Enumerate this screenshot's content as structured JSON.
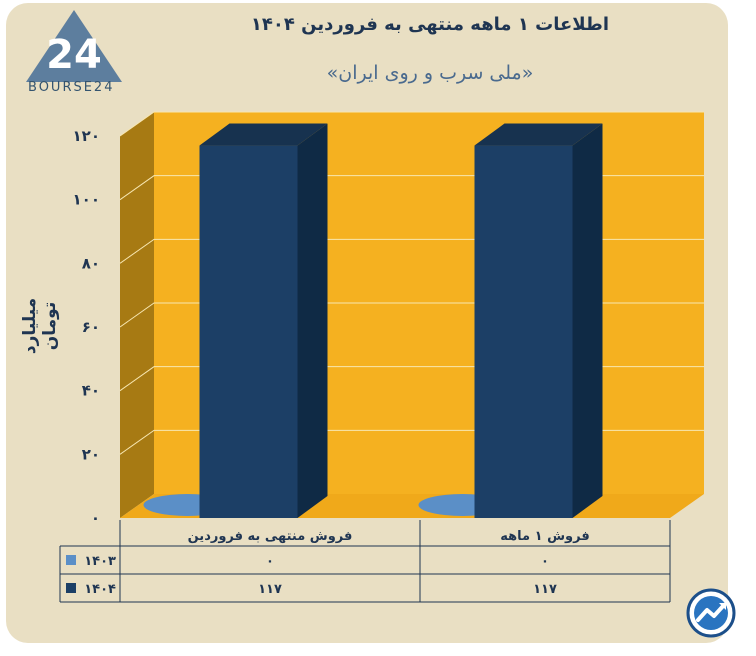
{
  "header": {
    "title": "اطلاعات ۱ ماهه منتهی به فروردین ۱۴۰۴",
    "subtitle": "«ملی سرب و روی ایران»",
    "logo_text": "BOURSE24"
  },
  "colors": {
    "background": "#e9dfc3",
    "plot_back": "#f5b120",
    "plot_side": "#a77a13",
    "plot_floor": "#f0a91a",
    "series_1403": "#5b8fc7",
    "series_1404": "#1c3f66",
    "series_1404_side": "#0f2a45",
    "series_1404_top": "#17324f"
  },
  "chart_data": {
    "type": "bar",
    "categories": [
      "فروش ۱ ماهه",
      "فروش منتهی به فروردین"
    ],
    "series": [
      {
        "name": "۱۴۰۳",
        "values": [
          0,
          0
        ],
        "display": [
          "۰",
          "۰"
        ]
      },
      {
        "name": "۱۴۰۴",
        "values": [
          117,
          117
        ],
        "display": [
          "۱۱۷",
          "۱۱۷"
        ]
      }
    ],
    "ylabel": "میلیارد تومان",
    "ylim": [
      0,
      120
    ],
    "yticks": [
      0,
      20,
      40,
      60,
      80,
      100,
      120
    ],
    "ytick_labels": [
      "۰",
      "۲۰",
      "۴۰",
      "۶۰",
      "۸۰",
      "۱۰۰",
      "۱۲۰"
    ],
    "grid": true,
    "legend": "data-table"
  }
}
